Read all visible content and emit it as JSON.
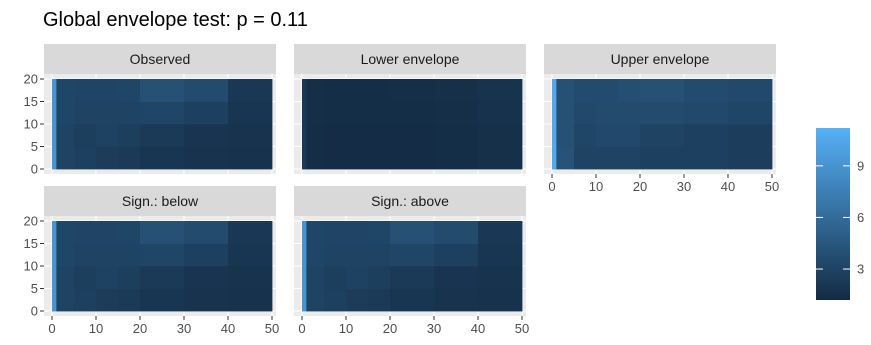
{
  "chart_data": {
    "type": "heatmap",
    "title": "Global envelope test: p = 0.11",
    "xlabel": "",
    "ylabel": "",
    "x_ticks": [
      0,
      10,
      20,
      30,
      40,
      50
    ],
    "y_ticks": [
      0,
      5,
      10,
      15,
      20
    ],
    "xlim": [
      0,
      50
    ],
    "ylim": [
      0,
      20
    ],
    "legend": {
      "position": "right",
      "ticks": [
        3,
        6,
        9
      ],
      "range": [
        1.2,
        11.2
      ],
      "low_color": "#132b43",
      "high_color": "#56b1f7"
    },
    "x_bins": [
      0,
      1,
      5,
      10,
      15,
      20,
      30,
      40,
      50
    ],
    "y_bins": [
      0,
      5,
      10,
      15,
      20
    ],
    "panels": [
      {
        "label": "Observed",
        "values": [
          [
            9.0,
            3.0,
            2.8,
            2.5,
            2.3,
            2.0,
            1.8,
            1.7
          ],
          [
            9.0,
            3.0,
            2.7,
            2.9,
            2.7,
            2.3,
            1.9,
            1.8
          ],
          [
            9.0,
            3.2,
            3.0,
            3.0,
            3.0,
            3.2,
            2.8,
            2.0
          ],
          [
            9.0,
            3.2,
            3.1,
            3.1,
            3.2,
            4.0,
            3.6,
            2.2
          ]
        ]
      },
      {
        "label": "Lower envelope",
        "values": [
          [
            2.2,
            1.4,
            1.3,
            1.3,
            1.3,
            1.3,
            1.4,
            1.6
          ],
          [
            2.2,
            1.4,
            1.3,
            1.3,
            1.3,
            1.3,
            1.4,
            1.6
          ],
          [
            2.2,
            1.5,
            1.4,
            1.4,
            1.4,
            1.4,
            1.5,
            1.7
          ],
          [
            2.2,
            1.5,
            1.4,
            1.4,
            1.4,
            1.5,
            1.6,
            1.8
          ]
        ]
      },
      {
        "label": "Upper envelope",
        "values": [
          [
            10.5,
            4.2,
            3.0,
            3.0,
            3.0,
            2.8,
            2.8,
            2.6
          ],
          [
            10.5,
            4.0,
            3.2,
            3.4,
            3.4,
            3.0,
            2.8,
            2.6
          ],
          [
            10.5,
            4.0,
            3.4,
            3.6,
            3.6,
            3.6,
            3.4,
            3.2
          ],
          [
            10.5,
            4.0,
            3.6,
            3.6,
            3.8,
            4.0,
            3.6,
            3.4
          ]
        ]
      },
      {
        "label": "Sign.: below",
        "values": [
          [
            9.0,
            3.0,
            2.8,
            2.5,
            2.3,
            2.0,
            1.8,
            1.7
          ],
          [
            9.0,
            3.0,
            2.7,
            2.9,
            2.7,
            2.3,
            1.9,
            1.8
          ],
          [
            9.0,
            3.2,
            3.0,
            3.0,
            3.0,
            3.2,
            2.8,
            2.0
          ],
          [
            9.0,
            3.2,
            3.1,
            3.1,
            3.2,
            4.0,
            3.6,
            2.2
          ]
        ]
      },
      {
        "label": "Sign.: above",
        "values": [
          [
            9.0,
            3.0,
            2.8,
            2.5,
            2.3,
            2.0,
            1.8,
            1.7
          ],
          [
            9.0,
            3.0,
            2.7,
            2.9,
            2.7,
            2.3,
            1.9,
            1.8
          ],
          [
            9.0,
            3.2,
            3.0,
            3.0,
            3.0,
            3.2,
            2.8,
            2.0
          ],
          [
            9.0,
            3.2,
            3.1,
            3.1,
            3.2,
            4.0,
            3.6,
            2.2
          ]
        ]
      }
    ]
  }
}
